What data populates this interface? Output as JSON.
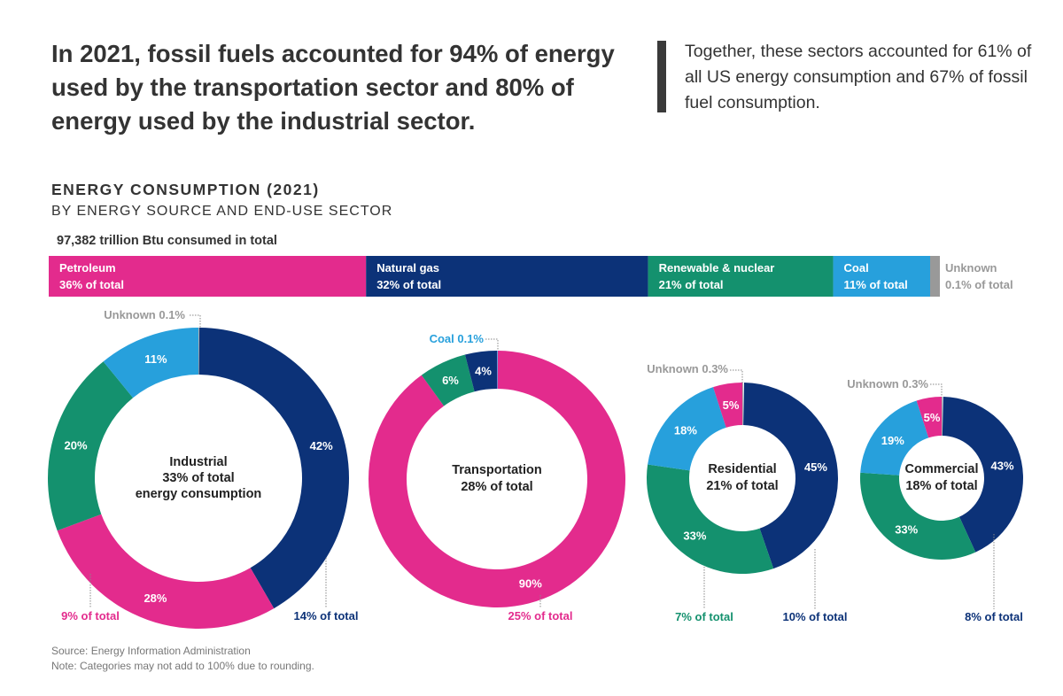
{
  "headline": "In 2021, fossil fuels accounted for 94% of energy used by the transportation sector and 80% of energy used by the industrial sector.",
  "quote": "Together, these sectors accounted for 61% of all US energy consumption and 67% of fossil fuel consumption.",
  "chart_title": "ENERGY CONSUMPTION (2021)",
  "chart_subtitle": "BY ENERGY SOURCE AND END-USE SECTOR",
  "total_label": "97,382 trillion Btu consumed in total",
  "source": "Source: Energy Information Administration",
  "note": "Note: Categories may not add to 100% due to rounding.",
  "colors": {
    "petroleum": "#e32b8d",
    "natural_gas": "#0c3278",
    "renewable": "#14916e",
    "coal": "#27a0dc",
    "unknown": "#999999"
  },
  "chart_data": [
    {
      "type": "bar",
      "orientation": "stacked-horizontal",
      "segments": [
        {
          "name": "Petroleum",
          "value": 36,
          "label": "36% of total",
          "color": "petroleum"
        },
        {
          "name": "Natural gas",
          "value": 32,
          "label": "32% of total",
          "color": "natural_gas"
        },
        {
          "name": "Renewable & nuclear",
          "value": 21,
          "label": "21% of total",
          "color": "renewable"
        },
        {
          "name": "Coal",
          "value": 11,
          "label": "11% of total",
          "color": "coal"
        },
        {
          "name": "Unknown",
          "value": 0.1,
          "label": "0.1% of total",
          "color": "unknown"
        }
      ]
    },
    {
      "type": "pie",
      "variant": "donut",
      "center_label": [
        "Industrial",
        "33% of total",
        "energy consumption"
      ],
      "slices": [
        {
          "source": "unknown",
          "value": 0.1,
          "label": "Unknown 0.1%"
        },
        {
          "source": "natural_gas",
          "value": 42,
          "label": "42%"
        },
        {
          "source": "petroleum",
          "value": 28,
          "label": "28%"
        },
        {
          "source": "renewable",
          "value": 20,
          "label": "20%"
        },
        {
          "source": "coal",
          "value": 11,
          "label": "11%"
        }
      ],
      "annotations": [
        {
          "text": "9% of total",
          "source": "petroleum"
        },
        {
          "text": "14% of total",
          "source": "natural_gas"
        }
      ]
    },
    {
      "type": "pie",
      "variant": "donut",
      "center_label": [
        "Transportation",
        "28% of total"
      ],
      "slices": [
        {
          "source": "coal",
          "value": 0.1,
          "label": "Coal 0.1%"
        },
        {
          "source": "petroleum",
          "value": 90,
          "label": "90%"
        },
        {
          "source": "renewable",
          "value": 6,
          "label": "6%"
        },
        {
          "source": "natural_gas",
          "value": 4,
          "label": "4%"
        }
      ],
      "annotations": [
        {
          "text": "25% of total",
          "source": "petroleum"
        }
      ]
    },
    {
      "type": "pie",
      "variant": "donut",
      "center_label": [
        "Residential",
        "21% of total"
      ],
      "slices": [
        {
          "source": "unknown",
          "value": 0.3,
          "label": "Unknown 0.3%"
        },
        {
          "source": "natural_gas",
          "value": 45,
          "label": "45%"
        },
        {
          "source": "renewable",
          "value": 33,
          "label": "33%"
        },
        {
          "source": "coal",
          "value": 18,
          "label": "18%"
        },
        {
          "source": "petroleum",
          "value": 5,
          "label": "5%"
        }
      ],
      "annotations": [
        {
          "text": "7% of total",
          "source": "renewable"
        },
        {
          "text": "10% of total",
          "source": "natural_gas"
        }
      ]
    },
    {
      "type": "pie",
      "variant": "donut",
      "center_label": [
        "Commercial",
        "18% of total"
      ],
      "slices": [
        {
          "source": "unknown",
          "value": 0.3,
          "label": "Unknown 0.3%"
        },
        {
          "source": "natural_gas",
          "value": 43,
          "label": "43%"
        },
        {
          "source": "renewable",
          "value": 33,
          "label": "33%"
        },
        {
          "source": "coal",
          "value": 19,
          "label": "19%"
        },
        {
          "source": "petroleum",
          "value": 5,
          "label": "5%"
        }
      ],
      "annotations": [
        {
          "text": "8% of total",
          "source": "natural_gas"
        }
      ]
    }
  ]
}
